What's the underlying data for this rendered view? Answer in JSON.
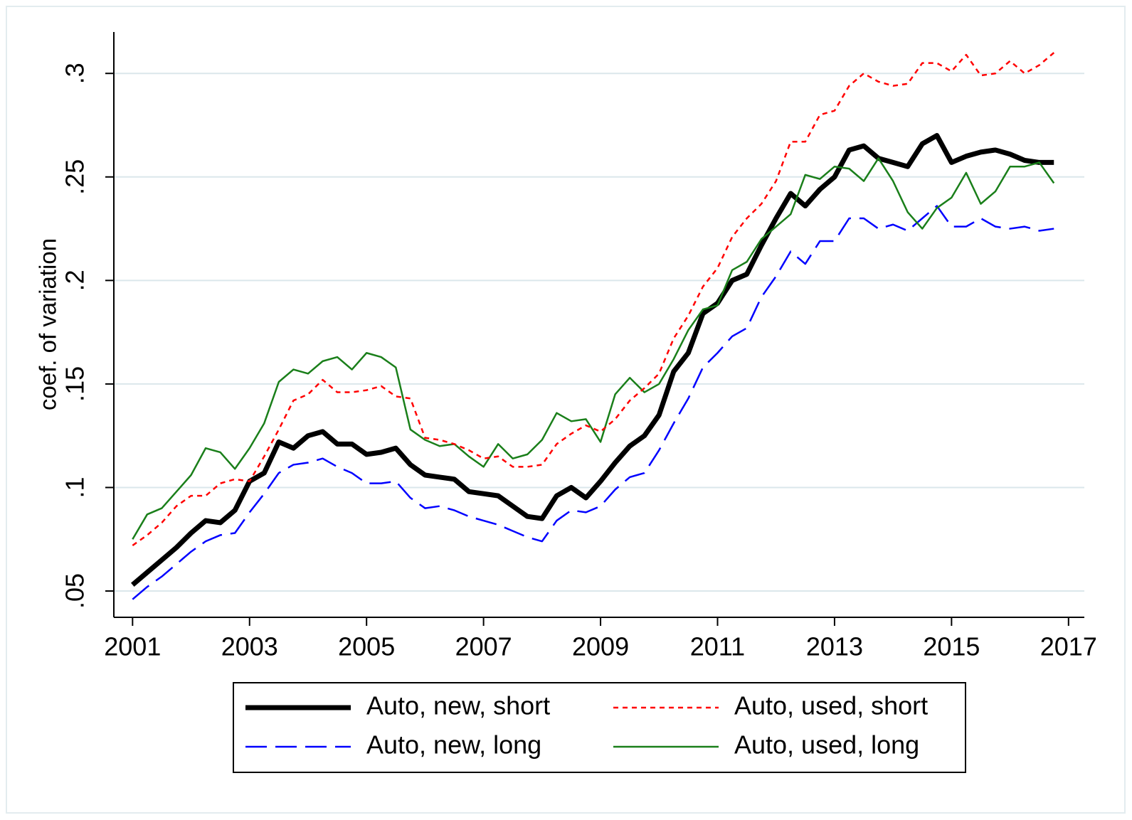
{
  "chart_data": {
    "type": "line",
    "y_label": "coef. of variation",
    "x": [
      2001,
      2001.25,
      2001.5,
      2001.75,
      2002,
      2002.25,
      2002.5,
      2002.75,
      2003,
      2003.25,
      2003.5,
      2003.75,
      2004,
      2004.25,
      2004.5,
      2004.75,
      2005,
      2005.25,
      2005.5,
      2005.75,
      2006,
      2006.25,
      2006.5,
      2006.75,
      2007,
      2007.25,
      2007.5,
      2007.75,
      2008,
      2008.25,
      2008.5,
      2008.75,
      2009,
      2009.25,
      2009.5,
      2009.75,
      2010,
      2010.25,
      2010.5,
      2010.75,
      2011,
      2011.25,
      2011.5,
      2011.75,
      2012,
      2012.25,
      2012.5,
      2012.75,
      2013,
      2013.25,
      2013.5,
      2013.75,
      2014,
      2014.25,
      2014.5,
      2014.75,
      2015,
      2015.25,
      2015.5,
      2015.75,
      2016,
      2016.25,
      2016.5,
      2016.75
    ],
    "series": [
      {
        "name": "Auto, new, short",
        "color": "#000000",
        "values": [
          0.053,
          0.059,
          0.065,
          0.071,
          0.078,
          0.084,
          0.083,
          0.089,
          0.103,
          0.107,
          0.122,
          0.119,
          0.125,
          0.127,
          0.121,
          0.121,
          0.116,
          0.117,
          0.119,
          0.111,
          0.106,
          0.105,
          0.104,
          0.098,
          0.097,
          0.096,
          0.091,
          0.086,
          0.085,
          0.096,
          0.1,
          0.095,
          0.103,
          0.112,
          0.12,
          0.125,
          0.135,
          0.156,
          0.165,
          0.184,
          0.189,
          0.2,
          0.203,
          0.217,
          0.23,
          0.242,
          0.236,
          0.244,
          0.25,
          0.263,
          0.265,
          0.259,
          0.257,
          0.255,
          0.266,
          0.27,
          0.257,
          0.26,
          0.262,
          0.263,
          0.261,
          0.258,
          0.257,
          0.257
        ]
      },
      {
        "name": "Auto, new, long",
        "color": "#0000ff",
        "values": [
          0.046,
          0.052,
          0.057,
          0.063,
          0.069,
          0.074,
          0.077,
          0.078,
          0.088,
          0.097,
          0.107,
          0.111,
          0.112,
          0.114,
          0.11,
          0.107,
          0.102,
          0.102,
          0.103,
          0.095,
          0.09,
          0.091,
          0.089,
          0.086,
          0.084,
          0.082,
          0.079,
          0.076,
          0.074,
          0.084,
          0.089,
          0.088,
          0.091,
          0.099,
          0.105,
          0.107,
          0.118,
          0.131,
          0.143,
          0.158,
          0.165,
          0.173,
          0.177,
          0.192,
          0.202,
          0.214,
          0.208,
          0.219,
          0.219,
          0.23,
          0.23,
          0.225,
          0.227,
          0.224,
          0.23,
          0.236,
          0.226,
          0.226,
          0.23,
          0.226,
          0.225,
          0.226,
          0.224,
          0.225
        ]
      },
      {
        "name": "Auto, used, short",
        "color": "#ff0000",
        "values": [
          0.072,
          0.077,
          0.083,
          0.091,
          0.096,
          0.096,
          0.102,
          0.104,
          0.103,
          0.115,
          0.128,
          0.142,
          0.145,
          0.152,
          0.146,
          0.146,
          0.147,
          0.149,
          0.144,
          0.143,
          0.124,
          0.123,
          0.121,
          0.118,
          0.114,
          0.115,
          0.11,
          0.11,
          0.111,
          0.121,
          0.126,
          0.13,
          0.127,
          0.133,
          0.142,
          0.148,
          0.155,
          0.172,
          0.183,
          0.197,
          0.206,
          0.221,
          0.23,
          0.237,
          0.248,
          0.267,
          0.267,
          0.28,
          0.282,
          0.294,
          0.3,
          0.296,
          0.294,
          0.295,
          0.305,
          0.305,
          0.301,
          0.309,
          0.299,
          0.3,
          0.306,
          0.3,
          0.304,
          0.31
        ]
      },
      {
        "name": "Auto, used, long",
        "color": "#1a7f1a",
        "values": [
          0.075,
          0.087,
          0.09,
          0.098,
          0.106,
          0.119,
          0.117,
          0.109,
          0.119,
          0.131,
          0.151,
          0.157,
          0.155,
          0.161,
          0.163,
          0.157,
          0.165,
          0.163,
          0.158,
          0.128,
          0.123,
          0.12,
          0.121,
          0.115,
          0.11,
          0.121,
          0.114,
          0.116,
          0.123,
          0.136,
          0.132,
          0.133,
          0.122,
          0.145,
          0.153,
          0.146,
          0.15,
          0.162,
          0.176,
          0.186,
          0.188,
          0.205,
          0.209,
          0.22,
          0.226,
          0.232,
          0.251,
          0.249,
          0.255,
          0.254,
          0.248,
          0.259,
          0.248,
          0.233,
          0.225,
          0.235,
          0.24,
          0.252,
          0.237,
          0.243,
          0.255,
          0.255,
          0.257,
          0.247
        ]
      }
    ],
    "xlim": [
      2000.68,
      2017.27
    ],
    "xticks": [
      2001,
      2003,
      2005,
      2007,
      2009,
      2011,
      2013,
      2015,
      2017
    ],
    "ylim": [
      0.0373,
      0.32
    ],
    "yticks": [
      {
        "value": 0.05,
        "label": ".05"
      },
      {
        "value": 0.1,
        "label": ".1"
      },
      {
        "value": 0.15,
        "label": ".15"
      },
      {
        "value": 0.2,
        "label": ".2"
      },
      {
        "value": 0.25,
        "label": ".25"
      },
      {
        "value": 0.3,
        "label": ".3"
      }
    ],
    "grid": true,
    "legend": "bottom"
  }
}
